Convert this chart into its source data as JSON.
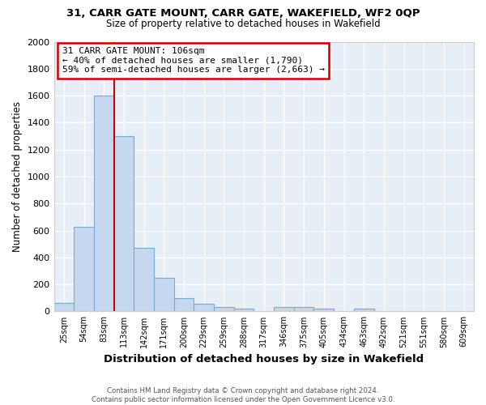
{
  "title": "31, CARR GATE MOUNT, CARR GATE, WAKEFIELD, WF2 0QP",
  "subtitle": "Size of property relative to detached houses in Wakefield",
  "xlabel": "Distribution of detached houses by size in Wakefield",
  "ylabel": "Number of detached properties",
  "bin_labels": [
    "25sqm",
    "54sqm",
    "83sqm",
    "113sqm",
    "142sqm",
    "171sqm",
    "200sqm",
    "229sqm",
    "259sqm",
    "288sqm",
    "317sqm",
    "346sqm",
    "375sqm",
    "405sqm",
    "434sqm",
    "463sqm",
    "492sqm",
    "521sqm",
    "551sqm",
    "580sqm",
    "609sqm"
  ],
  "bar_heights": [
    60,
    630,
    1600,
    1300,
    470,
    250,
    100,
    55,
    30,
    20,
    0,
    35,
    30,
    20,
    0,
    20,
    0,
    0,
    0,
    0,
    0
  ],
  "bar_color": "#c5d8ef",
  "bar_edge_color": "#7aaad0",
  "vline_color": "#cc0000",
  "ylim": [
    0,
    2000
  ],
  "yticks": [
    0,
    200,
    400,
    600,
    800,
    1000,
    1200,
    1400,
    1600,
    1800,
    2000
  ],
  "annotation_title": "31 CARR GATE MOUNT: 106sqm",
  "annotation_line1": "← 40% of detached houses are smaller (1,790)",
  "annotation_line2": "59% of semi-detached houses are larger (2,663) →",
  "annotation_box_color": "#cc0000",
  "footer_line1": "Contains HM Land Registry data © Crown copyright and database right 2024.",
  "footer_line2": "Contains public sector information licensed under the Open Government Licence v3.0.",
  "background_color": "#ffffff",
  "plot_bg_color": "#e8eef6",
  "grid_color": "#ffffff",
  "spine_color": "#cccccc"
}
